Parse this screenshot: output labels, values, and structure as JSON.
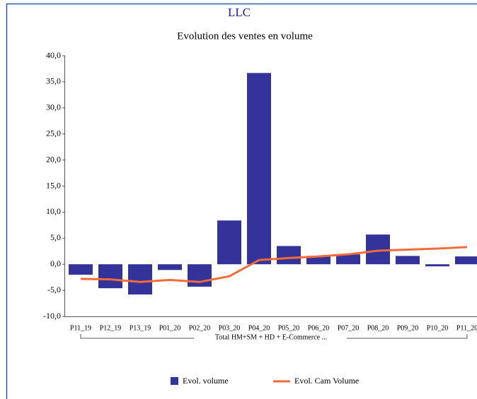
{
  "chart_data": {
    "type": "bar",
    "title": "LLC",
    "subtitle": "Evolution des ventes en volume",
    "group_label": "Total HM+SM + HD + E-Commerce ...",
    "categories": [
      "P11_19",
      "P12_19",
      "P13_19",
      "P01_20",
      "P02_20",
      "P03_20",
      "P04_20",
      "P05_20",
      "P06_20",
      "P07_20",
      "P08_20",
      "P09_20",
      "P10_20",
      "P11_20"
    ],
    "series": [
      {
        "name": "Evol. volume",
        "type": "bar",
        "color": "#333399",
        "values": [
          -2.0,
          -4.6,
          -5.8,
          -1.1,
          -4.3,
          8.4,
          36.7,
          3.5,
          1.6,
          1.9,
          5.7,
          1.6,
          -0.4,
          1.5
        ]
      },
      {
        "name": "Evol. Cam Volume",
        "type": "line",
        "color": "#f26b3a",
        "values": [
          -2.8,
          -2.9,
          -3.4,
          -3.0,
          -3.4,
          -2.3,
          0.8,
          1.2,
          1.5,
          1.9,
          2.6,
          2.8,
          3.0,
          3.3
        ]
      }
    ],
    "ylim": [
      -10,
      40
    ],
    "yticks": [
      {
        "value": -10,
        "label": "-10,0"
      },
      {
        "value": -5,
        "label": "-5,0"
      },
      {
        "value": 0,
        "label": "0,0"
      },
      {
        "value": 5,
        "label": "5,0"
      },
      {
        "value": 10,
        "label": "10,0"
      },
      {
        "value": 15,
        "label": "15,0"
      },
      {
        "value": 20,
        "label": "20,0"
      },
      {
        "value": 25,
        "label": "25,0"
      },
      {
        "value": 30,
        "label": "30,0"
      },
      {
        "value": 35,
        "label": "35,0"
      },
      {
        "value": 40,
        "label": "40,0"
      }
    ],
    "grid": false,
    "legend": "bottom"
  }
}
